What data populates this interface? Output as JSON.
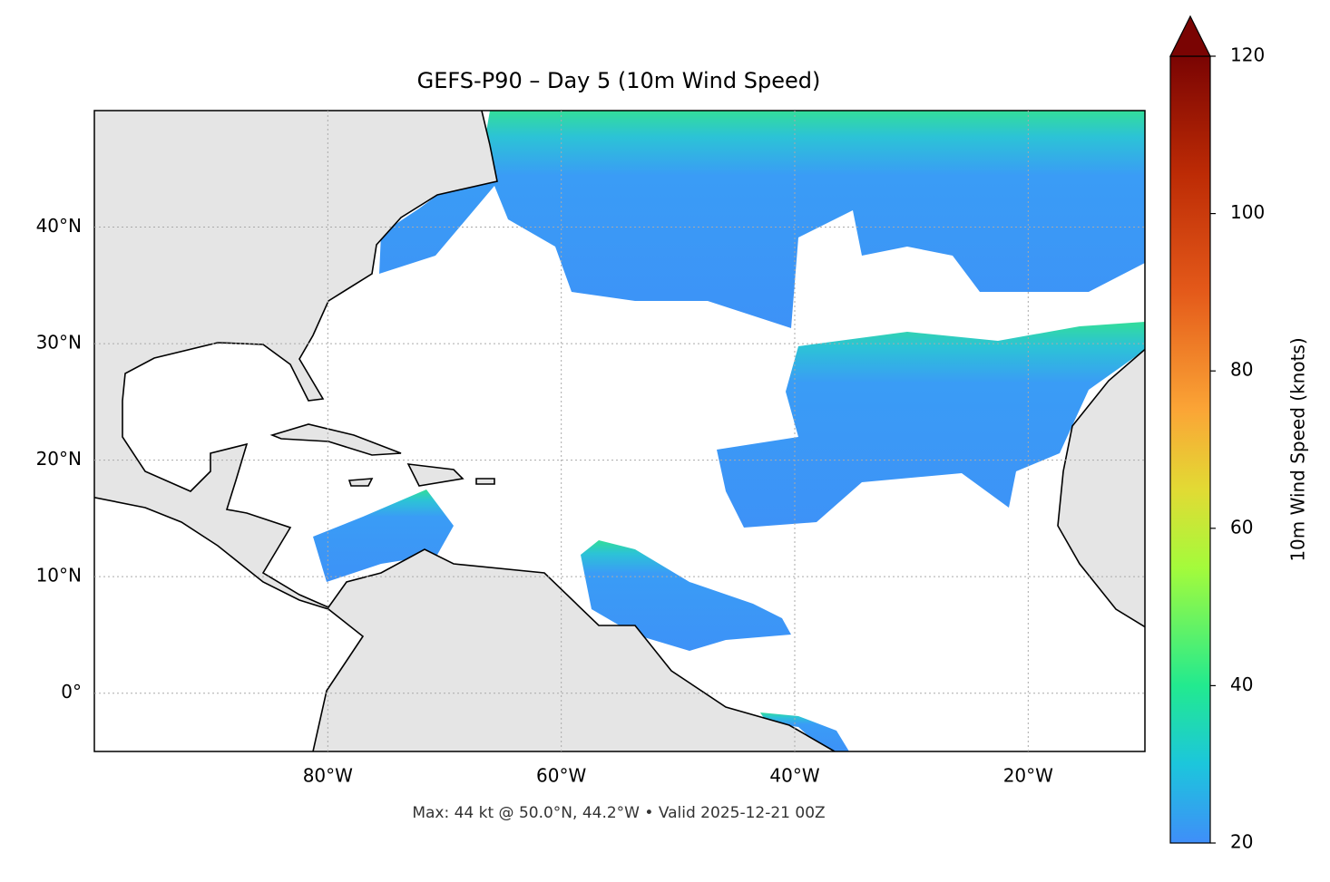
{
  "chart_data": {
    "type": "map",
    "title": "GEFS-P90 – Day 5 (10m Wind Speed)",
    "annotation": "Max: 44 kt @ 50.0°N, 44.2°W • Valid 2025-12-21 00Z",
    "xlim": [
      -100,
      -10
    ],
    "ylim": [
      -5,
      50
    ],
    "xticks": [
      {
        "value": -80,
        "label": "80°W"
      },
      {
        "value": -60,
        "label": "60°W"
      },
      {
        "value": -40,
        "label": "40°W"
      },
      {
        "value": -20,
        "label": "20°W"
      }
    ],
    "yticks": [
      {
        "value": 0,
        "label": "0°"
      },
      {
        "value": 10,
        "label": "10°N"
      },
      {
        "value": 20,
        "label": "20°N"
      },
      {
        "value": 30,
        "label": "30°N"
      },
      {
        "value": 40,
        "label": "40°N"
      }
    ],
    "grid": true,
    "colorbar": {
      "label": "10m Wind Speed (knots)",
      "clim": [
        20,
        120
      ],
      "ticks": [
        20,
        40,
        60,
        80,
        100,
        120
      ],
      "extend": "max"
    }
  }
}
